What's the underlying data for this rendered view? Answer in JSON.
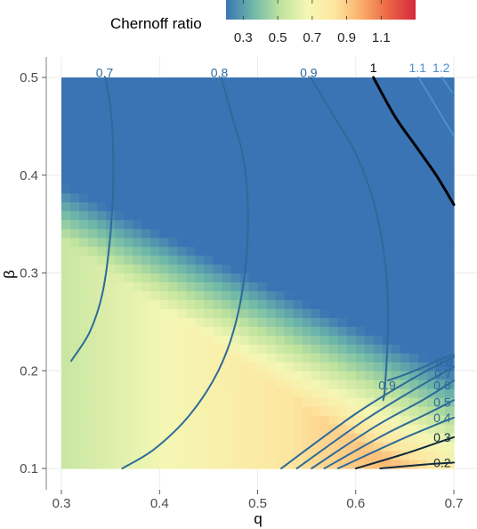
{
  "chart_data": {
    "type": "heatmap",
    "title": "",
    "xlabel": "q",
    "ylabel": "β",
    "xlim": [
      0.3,
      0.7
    ],
    "ylim": [
      0.1,
      0.5
    ],
    "x_ticks": [
      "0.3",
      "0.4",
      "0.5",
      "0.6",
      "0.7"
    ],
    "y_ticks": [
      "0.1",
      "0.2",
      "0.3",
      "0.4",
      "0.5"
    ],
    "grid": true,
    "legend": {
      "title": "Chernoff ratio",
      "position": "top",
      "range": [
        0.2,
        1.3
      ],
      "ticks": [
        "0.3",
        "0.5",
        "0.7",
        "0.9",
        "1.1"
      ],
      "colors": [
        "#3a74b4",
        "#6fb8a8",
        "#bfe39e",
        "#f4f7b4",
        "#fde6a0",
        "#f9ae68",
        "#ec6545",
        "#d22a3c"
      ]
    },
    "contours": [
      {
        "level": "0.7",
        "label_at": [
          0.344,
          0.505
        ],
        "points": [
          [
            0.345,
            0.5
          ],
          [
            0.351,
            0.46
          ],
          [
            0.353,
            0.4
          ],
          [
            0.35,
            0.34
          ],
          [
            0.342,
            0.28
          ],
          [
            0.329,
            0.24
          ],
          [
            0.31,
            0.21
          ]
        ]
      },
      {
        "level": "0.8",
        "label_at": [
          0.461,
          0.505
        ],
        "points": [
          [
            0.463,
            0.5
          ],
          [
            0.474,
            0.46
          ],
          [
            0.485,
            0.42
          ],
          [
            0.49,
            0.37
          ],
          [
            0.488,
            0.31
          ],
          [
            0.478,
            0.25
          ],
          [
            0.46,
            0.2
          ],
          [
            0.431,
            0.155
          ],
          [
            0.395,
            0.12
          ],
          [
            0.362,
            0.1
          ]
        ]
      },
      {
        "level": "0.9",
        "label_at": [
          0.552,
          0.505
        ],
        "points": [
          [
            0.554,
            0.5
          ],
          [
            0.578,
            0.46
          ],
          [
            0.601,
            0.42
          ],
          [
            0.619,
            0.37
          ],
          [
            0.63,
            0.31
          ],
          [
            0.633,
            0.25
          ],
          [
            0.63,
            0.185
          ],
          [
            0.628,
            0.17
          ]
        ]
      },
      {
        "level": "1",
        "label_at": [
          0.618,
          0.51
        ],
        "points": [
          [
            0.618,
            0.5
          ],
          [
            0.64,
            0.46
          ],
          [
            0.661,
            0.43
          ],
          [
            0.682,
            0.4
          ],
          [
            0.7,
            0.37
          ]
        ]
      },
      {
        "level": "1.1",
        "label_at": [
          0.663,
          0.51
        ],
        "points": [
          [
            0.664,
            0.5
          ],
          [
            0.7,
            0.44
          ]
        ]
      },
      {
        "level": "1.2",
        "label_at": [
          0.687,
          0.51
        ],
        "points": [
          [
            0.688,
            0.5
          ],
          [
            0.698,
            0.485
          ]
        ]
      },
      {
        "level": "0.9",
        "label_at": [
          0.632,
          0.185
        ],
        "points": [
          [
            0.633,
            0.19
          ],
          [
            0.65,
            0.196
          ],
          [
            0.672,
            0.205
          ],
          [
            0.687,
            0.212
          ],
          [
            0.695,
            0.215
          ],
          [
            0.7,
            0.216
          ]
        ]
      },
      {
        "level": "0.8",
        "label_at": [
          0.69,
          0.209
        ],
        "points": [
          [
            0.524,
            0.1
          ],
          [
            0.6,
            0.156
          ],
          [
            0.66,
            0.193
          ],
          [
            0.7,
            0.214
          ]
        ]
      },
      {
        "level": "0.7",
        "label_at": [
          0.689,
          0.197
        ],
        "points": [
          [
            0.54,
            0.1
          ],
          [
            0.61,
            0.15
          ],
          [
            0.665,
            0.184
          ],
          [
            0.7,
            0.204
          ]
        ]
      },
      {
        "level": "0.6",
        "label_at": [
          0.688,
          0.185
        ],
        "points": [
          [
            0.555,
            0.1
          ],
          [
            0.62,
            0.143
          ],
          [
            0.67,
            0.171
          ],
          [
            0.7,
            0.19
          ]
        ]
      },
      {
        "level": "0.5",
        "label_at": [
          0.688,
          0.168
        ],
        "points": [
          [
            0.568,
            0.1
          ],
          [
            0.63,
            0.135
          ],
          [
            0.675,
            0.157
          ],
          [
            0.7,
            0.17
          ]
        ]
      },
      {
        "level": "0.4",
        "label_at": [
          0.688,
          0.152
        ],
        "points": [
          [
            0.582,
            0.1
          ],
          [
            0.64,
            0.127
          ],
          [
            0.68,
            0.144
          ],
          [
            0.7,
            0.152
          ]
        ]
      },
      {
        "level": "0.3",
        "label_at": [
          0.688,
          0.132
        ],
        "points": [
          [
            0.6,
            0.1
          ],
          [
            0.65,
            0.115
          ],
          [
            0.685,
            0.127
          ],
          [
            0.7,
            0.132
          ]
        ]
      },
      {
        "level": "0.2",
        "label_at": [
          0.688,
          0.106
        ],
        "points": [
          [
            0.625,
            0.1
          ],
          [
            0.67,
            0.104
          ],
          [
            0.7,
            0.106
          ]
        ]
      }
    ]
  }
}
